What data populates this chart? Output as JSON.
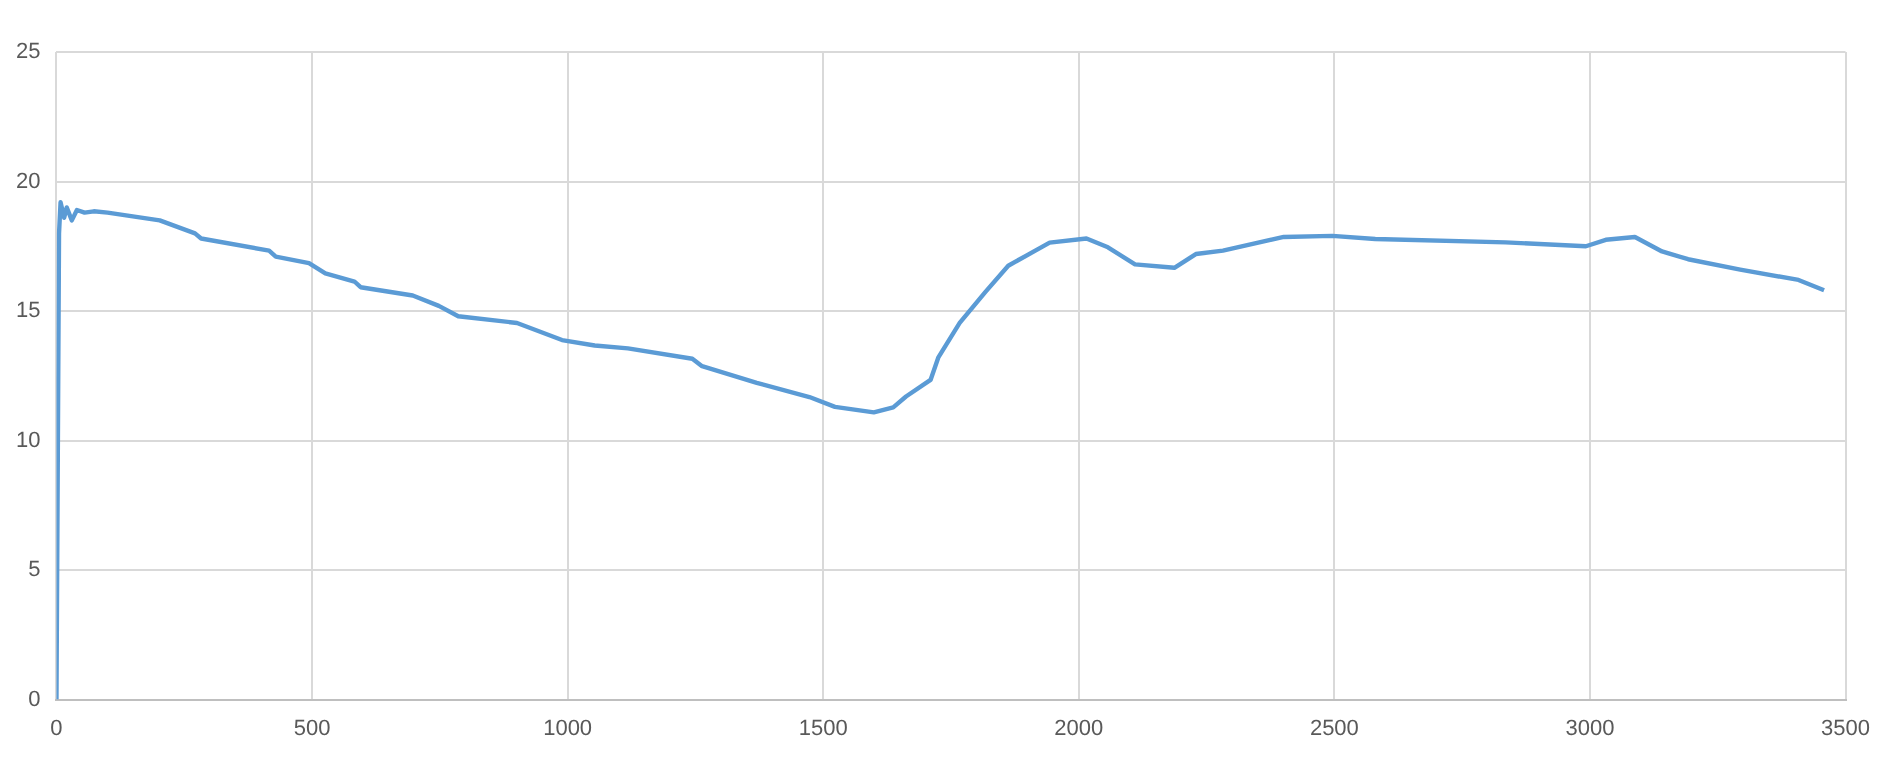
{
  "chart_data": {
    "type": "line",
    "grid": true,
    "legend": false,
    "marker": "none",
    "line_style": "solid",
    "xlim": [
      0,
      3500
    ],
    "xticks": [
      0,
      500,
      1000,
      1500,
      2000,
      2500,
      3000,
      3500
    ],
    "ylim": [
      0,
      25
    ],
    "yticks": [
      0,
      5,
      10,
      15,
      20,
      25
    ],
    "series": [
      {
        "color": "#5b9bd5",
        "x": [
          0,
          5,
          8,
          15,
          20,
          30,
          40,
          55,
          73,
          100,
          202,
          271,
          283,
          416,
          429,
          494,
          526,
          583,
          595,
          697,
          748,
          786,
          901,
          989,
          1053,
          1118,
          1244,
          1263,
          1370,
          1473,
          1523,
          1599,
          1637,
          1662,
          1710,
          1725,
          1767,
          1817,
          1862,
          1943,
          2015,
          2057,
          2110,
          2187,
          2229,
          2282,
          2401,
          2496,
          2580,
          2835,
          2992,
          3031,
          3088,
          3141,
          3192,
          3294,
          3408,
          3458
        ],
        "values": [
          0,
          18,
          19.2,
          18.6,
          19,
          18.5,
          18.9,
          18.8,
          18.85,
          18.8,
          18.5,
          18,
          17.8,
          17.33,
          17.1,
          16.85,
          16.45,
          16.14,
          15.92,
          15.6,
          15.2,
          14.8,
          14.54,
          13.88,
          13.67,
          13.56,
          13.16,
          12.87,
          12.23,
          11.68,
          11.3,
          11.09,
          11.28,
          11.7,
          12.34,
          13.2,
          14.54,
          15.73,
          16.75,
          17.64,
          17.8,
          17.46,
          16.8,
          16.67,
          17.2,
          17.33,
          17.86,
          17.9,
          17.78,
          17.65,
          17.5,
          17.75,
          17.86,
          17.3,
          17,
          16.6,
          16.2,
          15.8
        ]
      }
    ]
  }
}
